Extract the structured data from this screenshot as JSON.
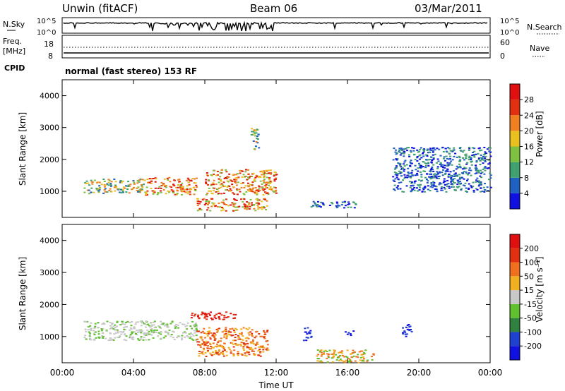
{
  "header": {
    "station": "Unwin (fitACF)",
    "beam": "Beam 06",
    "date": "03/Mar/2011"
  },
  "nsky": {
    "label": "N.Sky",
    "ticks": [
      "10^5",
      "10^0"
    ],
    "right_ticks": [
      "10^5",
      "10^0"
    ],
    "right_label": "N.Search"
  },
  "freq": {
    "label_lines": [
      "Freq.",
      "[MHz]"
    ],
    "ticks": [
      "18",
      "8"
    ],
    "right_ticks": [
      "60",
      "0"
    ],
    "right_label": "Nave"
  },
  "cpid": {
    "label": "CPID",
    "text": "normal (fast stereo) 153 RF"
  },
  "chart_data": [
    {
      "type": "heatmap",
      "title": "",
      "ylabel": "Slant Range [km]",
      "ylim": [
        180,
        4500
      ],
      "yticks": [
        "1000",
        "2000",
        "3000",
        "4000"
      ],
      "xlim": [
        "00:00",
        "24:00"
      ],
      "colorbar": {
        "label": "Power [dB]",
        "ticks": [
          "4",
          "8",
          "12",
          "16",
          "20",
          "24",
          "28"
        ],
        "colors": [
          "#1010e0",
          "#2060c0",
          "#40a070",
          "#80c040",
          "#e8c020",
          "#f08020",
          "#e03010",
          "#e01010"
        ]
      },
      "regions": [
        {
          "x": [
            1.2,
            4.6
          ],
          "y": [
            950,
            1400
          ],
          "level": "medium"
        },
        {
          "x": [
            4.6,
            7.5
          ],
          "y": [
            900,
            1450
          ],
          "level": "high"
        },
        {
          "x": [
            7.5,
            11.5
          ],
          "y": [
            400,
            800
          ],
          "level": "high"
        },
        {
          "x": [
            8.0,
            12.0
          ],
          "y": [
            900,
            1700
          ],
          "level": "high"
        },
        {
          "x": [
            10.5,
            11.0
          ],
          "y": [
            2300,
            3000
          ],
          "level": "medium"
        },
        {
          "x": [
            13.8,
            16.5
          ],
          "y": [
            500,
            700
          ],
          "level": "low"
        },
        {
          "x": [
            18.5,
            24.0
          ],
          "y": [
            1000,
            2400
          ],
          "level": "low"
        }
      ]
    },
    {
      "type": "heatmap",
      "title": "",
      "ylabel": "Slant Range [km]",
      "ylim": [
        180,
        4500
      ],
      "yticks": [
        "1000",
        "2000",
        "3000",
        "4000"
      ],
      "xlim": [
        "00:00",
        "24:00"
      ],
      "colorbar": {
        "label": "Velocity [m s⁻¹]",
        "ticks": [
          "200",
          "100",
          "50",
          "15",
          "-15",
          "-50",
          "-100",
          "-200"
        ],
        "colors": [
          "#1010e0",
          "#2040d0",
          "#308040",
          "#60c030",
          "#c8c8c8",
          "#f0b020",
          "#f07020",
          "#e03010",
          "#e01010"
        ]
      },
      "regions": [
        {
          "x": [
            1.2,
            7.5
          ],
          "y": [
            900,
            1500
          ],
          "level": "ground-scatter"
        },
        {
          "x": [
            7.5,
            11.5
          ],
          "y": [
            400,
            1300
          ],
          "level": "-100"
        },
        {
          "x": [
            7.2,
            9.8
          ],
          "y": [
            1550,
            1800
          ],
          "level": "-200"
        },
        {
          "x": [
            13.5,
            14.0
          ],
          "y": [
            900,
            1300
          ],
          "level": "200"
        },
        {
          "x": [
            15.8,
            16.3
          ],
          "y": [
            1050,
            1200
          ],
          "level": "200"
        },
        {
          "x": [
            19.0,
            19.6
          ],
          "y": [
            1000,
            1400
          ],
          "level": "200"
        },
        {
          "x": [
            14.2,
            17.5
          ],
          "y": [
            200,
            600
          ],
          "level": "-50"
        }
      ]
    }
  ],
  "xaxis": {
    "ticks": [
      "00:00",
      "04:00",
      "08:00",
      "12:00",
      "16:00",
      "20:00",
      "00:00"
    ],
    "label": "Time UT"
  }
}
